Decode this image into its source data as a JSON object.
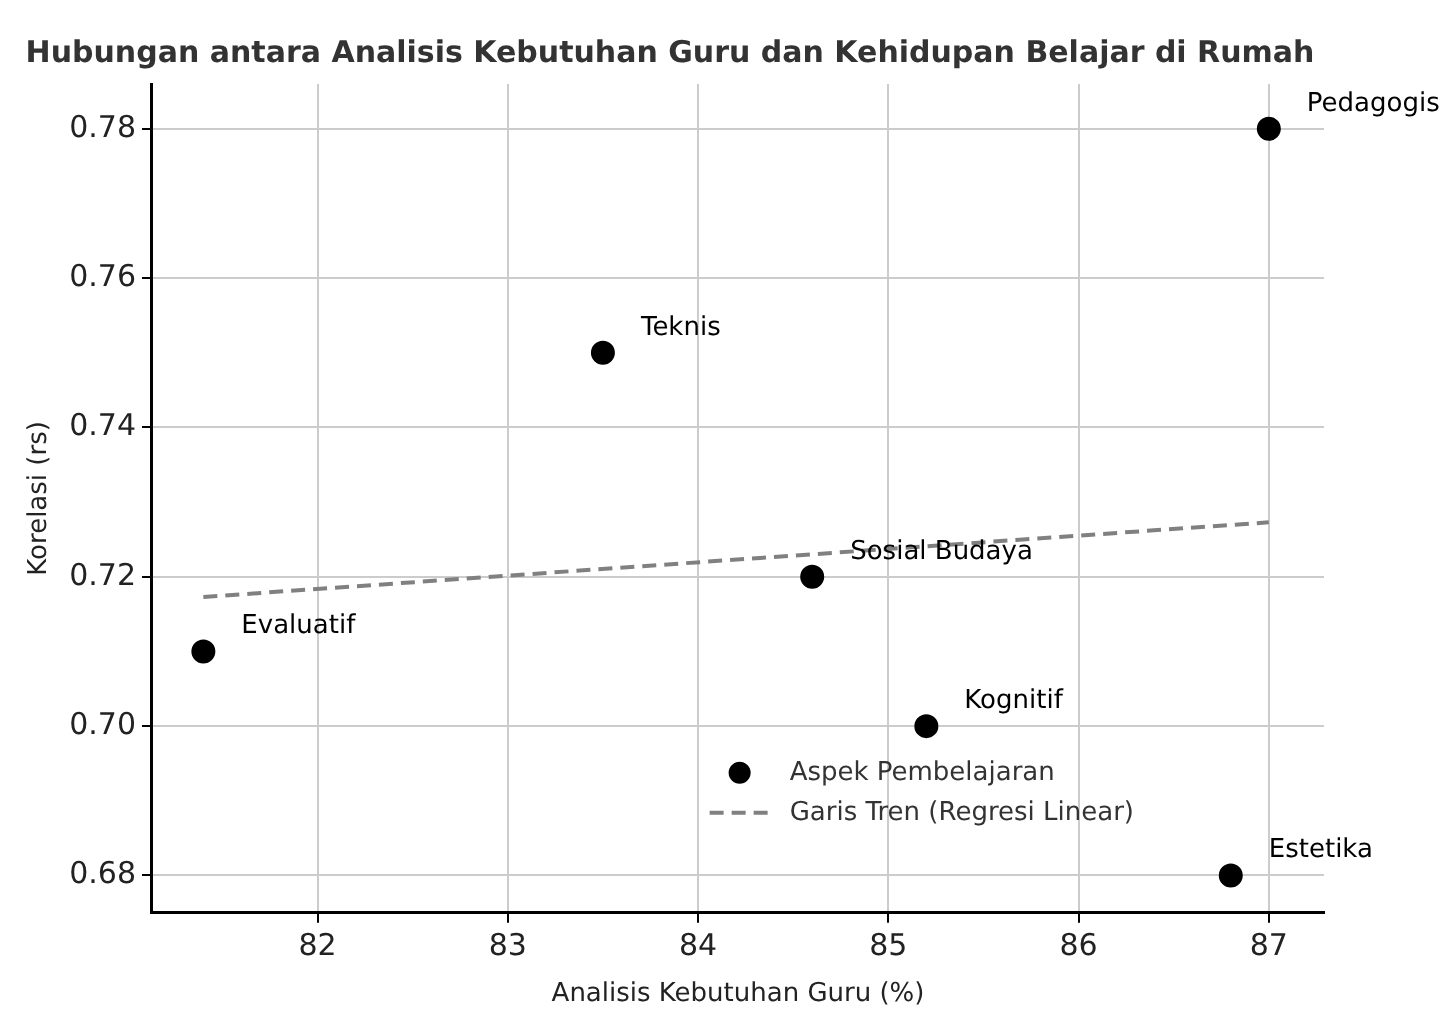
{
  "chart_data": {
    "type": "scatter",
    "title": "Hubungan antara Analisis Kebutuhan Guru dan Kehidupan Belajar di Rumah",
    "xlabel": "Analisis Kebutuhan Guru (%)",
    "ylabel": "Korelasi (rs)",
    "x": [
      81.4,
      83.5,
      84.6,
      85.2,
      86.8,
      87.0
    ],
    "series": [
      {
        "name": "Aspek Pembelajaran",
        "color": "#000000",
        "marker": "circle",
        "values": [
          0.71,
          0.75,
          0.72,
          0.7,
          0.68,
          0.78
        ]
      },
      {
        "name": "Garis Tren (Regresi Linear)",
        "type": "line",
        "color": "#808080",
        "line_style": "dashed",
        "marker": "none",
        "x": [
          81.4,
          87.0
        ],
        "values": [
          0.7173,
          0.7273
        ]
      }
    ],
    "xlim": [
      81.13,
      87.29
    ],
    "ylim": [
      0.675,
      0.786
    ],
    "xticks": [
      82,
      83,
      84,
      85,
      86,
      87
    ],
    "yticks": [
      0.68,
      {
        "value": 0.7,
        "label": "0.70"
      },
      0.72,
      0.74,
      0.76,
      0.78
    ],
    "grid": true,
    "legend": "bottom right",
    "annotations": [
      {
        "text": "Evaluatif",
        "x": 81.4,
        "y": 0.71
      },
      {
        "text": "Teknis",
        "x": 83.5,
        "y": 0.75
      },
      {
        "text": "Sosial Budaya",
        "x": 84.6,
        "y": 0.72
      },
      {
        "text": "Kognitif",
        "x": 85.2,
        "y": 0.7
      },
      {
        "text": "Estetika",
        "x": 86.8,
        "y": 0.68
      },
      {
        "text": "Pedagogis",
        "x": 87.0,
        "y": 0.78
      }
    ]
  }
}
